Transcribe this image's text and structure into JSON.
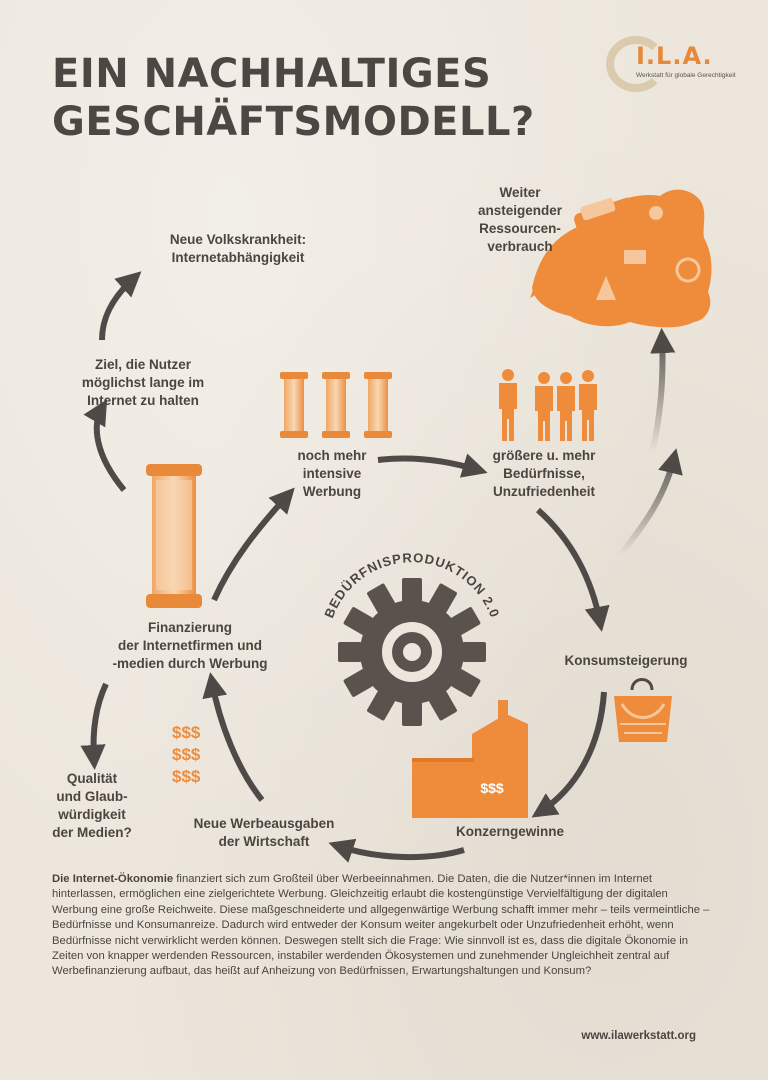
{
  "title": {
    "line1": "EIN NACHHALTIGES",
    "line2": "GESCHÄFTSMODELL?"
  },
  "logo": {
    "main": "I.L.A.",
    "sub": "Werkstatt für globale Gerechtigkeit"
  },
  "nodes": {
    "volkskrankheit": [
      "Neue Volkskrankheit:",
      "Internetabhängigkeit"
    ],
    "ressourcen": [
      "Weiter",
      "ansteigender",
      "Ressourcen-",
      "verbrauch"
    ],
    "ziel": [
      "Ziel, die Nutzer",
      "möglichst lange im",
      "Internet zu halten"
    ],
    "werbung": [
      "noch mehr",
      "intensive",
      "Werbung"
    ],
    "beduerfnisse": [
      "größere u. mehr",
      "Bedürfnisse,",
      "Unzufriedenheit"
    ],
    "finanzierung": [
      "Finanzierung",
      "der Internetfirmen und",
      "-medien durch Werbung"
    ],
    "konsum": [
      "Konsumsteigerung"
    ],
    "qualitaet": [
      "Qualität",
      "und Glaub-",
      "würdigkeit",
      "der Medien?"
    ],
    "werbeausgaben": [
      "Neue Werbeausgaben",
      "der Wirtschaft"
    ],
    "konzern": [
      "Konzerngewinne"
    ]
  },
  "center": {
    "caption": "BEDÜRFNISPRODUKTION 2.0"
  },
  "dollars": [
    "$$$",
    "$$$",
    "$$$"
  ],
  "factory_label": "$$$",
  "body": {
    "lead": "Die Internet-Ökonomie",
    "text": " finanziert sich zum Großteil über Werbeeinnahmen. Die Daten, die die Nutzer*innen im Internet hinterlassen, ermöglichen eine zielgerichtete Werbung. Gleichzeitig erlaubt die kostengünstige Vervielfältigung der digitalen Werbung eine große Reichweite. Diese maßgeschneiderte und allgegenwärtige Werbung schafft immer mehr – teils vermeintliche –Bedürfnisse und Konsumanreize. Dadurch wird entweder der Konsum weiter angekurbelt oder Unzufriedenheit erhöht, wenn Bedürfnisse nicht verwirklicht werden können. Deswegen stellt sich die Frage: Wie sinnvoll ist es, dass die digitale Ökonomie in Zeiten von knapper werdenden Ressourcen, instabiler werdenden Ökosystemen und zunehmender Ungleichheit zentral auf Werbefinanzierung aufbaut, das heißt auf Anheizung von Bedürfnissen, Erwartungshaltungen und Konsum?"
  },
  "website": "www.ilawerkstatt.org",
  "colors": {
    "accent": "#ef8c3b",
    "text": "#4a4541",
    "arrow": "#4f4a47",
    "gear": "#5a524d",
    "background": "#ece6dc"
  }
}
